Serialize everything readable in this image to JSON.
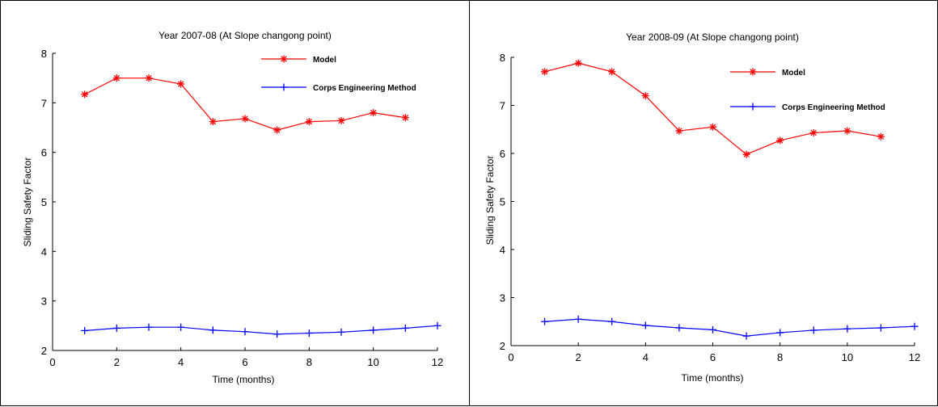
{
  "chart_data": [
    {
      "type": "line",
      "title": "Year 2007-08 (At Slope changong point)",
      "xlabel": "Time (months)",
      "ylabel": "Sliding Safety Factor",
      "xlim": [
        0,
        12
      ],
      "ylim": [
        2,
        8
      ],
      "xticks": [
        0,
        2,
        4,
        6,
        8,
        10,
        12
      ],
      "xtick_labels": [
        "0",
        "2",
        "4",
        "6",
        "8",
        "10",
        "12"
      ],
      "yticks": [
        2,
        3,
        4,
        5,
        6,
        7,
        8
      ],
      "ytick_labels": [
        "2",
        "3",
        "4",
        "5",
        "6",
        "7",
        "8"
      ],
      "grid": false,
      "legend_position": "top-right",
      "series": [
        {
          "name": "Model",
          "color": "#ff0000",
          "marker": "asterisk",
          "x": [
            1,
            2,
            3,
            4,
            5,
            6,
            7,
            8,
            9,
            10,
            11
          ],
          "y": [
            7.17,
            7.5,
            7.5,
            7.38,
            6.62,
            6.68,
            6.45,
            6.62,
            6.64,
            6.8,
            6.7
          ]
        },
        {
          "name": "Corps Engineering Method",
          "color": "#0000ff",
          "marker": "plus",
          "x": [
            1,
            2,
            3,
            4,
            5,
            6,
            7,
            8,
            9,
            10,
            11,
            12
          ],
          "y": [
            2.4,
            2.45,
            2.47,
            2.47,
            2.41,
            2.38,
            2.33,
            2.35,
            2.37,
            2.41,
            2.45,
            2.5
          ]
        }
      ]
    },
    {
      "type": "line",
      "title": "Year 2008-09 (At Slope changong point)",
      "xlabel": "Time (months)",
      "ylabel": "Sliding Safety Factor",
      "xlim": [
        0,
        12
      ],
      "ylim": [
        2,
        8
      ],
      "xticks": [
        0,
        2,
        4,
        6,
        8,
        10,
        12
      ],
      "xtick_labels": [
        "0",
        "2",
        "4",
        "6",
        "8",
        "10",
        "12"
      ],
      "yticks": [
        2,
        3,
        4,
        5,
        6,
        7,
        8
      ],
      "ytick_labels": [
        "2",
        "3",
        "4",
        "5",
        "6",
        "7",
        "8"
      ],
      "grid": false,
      "legend_position": "top-right",
      "series": [
        {
          "name": "Model",
          "color": "#ff0000",
          "marker": "asterisk",
          "x": [
            1,
            2,
            3,
            4,
            5,
            6,
            7,
            8,
            9,
            10,
            11
          ],
          "y": [
            7.7,
            7.88,
            7.7,
            7.2,
            6.47,
            6.55,
            5.98,
            6.27,
            6.43,
            6.47,
            6.35
          ]
        },
        {
          "name": "Corps Engineering Method",
          "color": "#0000ff",
          "marker": "plus",
          "x": [
            1,
            2,
            3,
            4,
            5,
            6,
            7,
            8,
            9,
            10,
            11,
            12
          ],
          "y": [
            2.5,
            2.55,
            2.5,
            2.42,
            2.37,
            2.33,
            2.2,
            2.27,
            2.32,
            2.35,
            2.37,
            2.4
          ]
        }
      ]
    }
  ]
}
